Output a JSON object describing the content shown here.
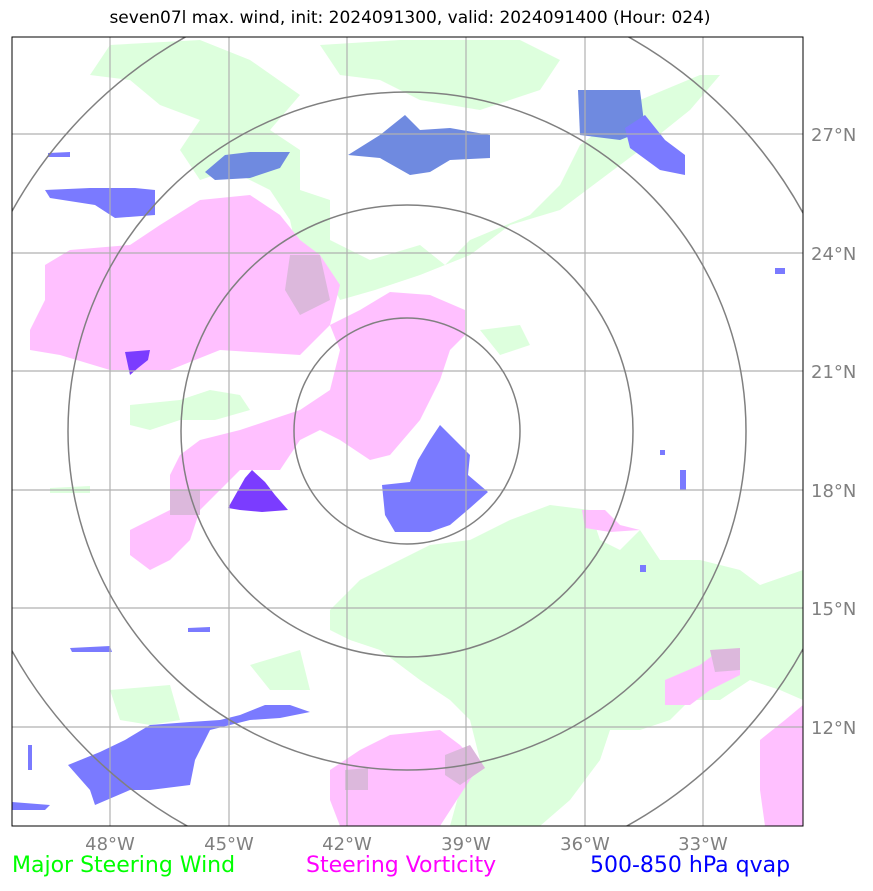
{
  "title": "seven07l max. wind, init: 2024091300, valid: 2024091400 (Hour: 024)",
  "legend": [
    {
      "label": "Major Steering Wind",
      "color": "#00ff00"
    },
    {
      "label": "Steering Vorticity",
      "color": "#ff00ff"
    },
    {
      "label": "500-850 hPa qvap",
      "color": "#0000ff"
    }
  ],
  "map": {
    "lat_labels": [
      "27°N",
      "24°N",
      "21°N",
      "18°N",
      "15°N",
      "12°N"
    ],
    "lon_labels": [
      "48°W",
      "45°W",
      "42°W",
      "39°W",
      "36°W",
      "33°W"
    ],
    "colors": {
      "wind": "#ddffdd",
      "vorticity": "#ffc0ff",
      "qvap": "#7a7aff",
      "qvap_dark": "#6f8ae0",
      "qvap_core": "#7b3cff",
      "overlap": "#dcb8dc",
      "grid": "#b0b0b0",
      "rings": "#808080",
      "label": "#808080"
    },
    "range_rings": 4,
    "grid": true
  }
}
